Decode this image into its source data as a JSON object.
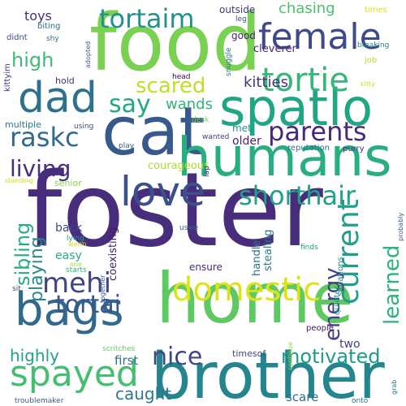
{
  "word_cloud": {
    "words": [
      {
        "text": "foster",
        "color": "#472d7b"
      },
      {
        "text": "home",
        "color": "#5ec962"
      },
      {
        "text": "food",
        "color": "#7ad151"
      },
      {
        "text": "cat",
        "color": "#38598c"
      },
      {
        "text": "brother",
        "color": "#25858e"
      },
      {
        "text": "humans",
        "color": "#29af7f"
      },
      {
        "text": "spatlo",
        "color": "#21a685"
      },
      {
        "text": "bags",
        "color": "#31688e"
      },
      {
        "text": "dad",
        "color": "#2c728e"
      },
      {
        "text": "love",
        "color": "#3b518b"
      },
      {
        "text": "female",
        "color": "#3e4a89"
      },
      {
        "text": "domestic",
        "color": "#dde318"
      },
      {
        "text": "tortie",
        "color": "#35b779"
      },
      {
        "text": "shorthair",
        "color": "#1fa287"
      },
      {
        "text": "spayed",
        "color": "#44bf70"
      },
      {
        "text": "parents",
        "color": "#482878"
      },
      {
        "text": "mehi",
        "color": "#404588"
      },
      {
        "text": "tortaim",
        "color": "#21918c"
      },
      {
        "text": "current",
        "color": "#1f9e89"
      },
      {
        "text": "tortai",
        "color": "#3a548c"
      },
      {
        "text": "raskc",
        "color": "#306a8e"
      },
      {
        "text": "say",
        "color": "#22a884"
      },
      {
        "text": "energy",
        "color": "#433e85"
      },
      {
        "text": "learned",
        "color": "#2db27d"
      },
      {
        "text": "living",
        "color": "#46307e"
      },
      {
        "text": "nice",
        "color": "#414487"
      },
      {
        "text": "scared",
        "color": "#bddf26"
      },
      {
        "text": "sibling",
        "color": "#26ad81"
      },
      {
        "text": "high",
        "color": "#3fbc73"
      },
      {
        "text": "playing",
        "color": "#24878e"
      },
      {
        "text": "motivated",
        "color": "#1e9c89"
      },
      {
        "text": "highly",
        "color": "#20a386"
      },
      {
        "text": "caught",
        "color": "#2a778e"
      },
      {
        "text": "chasing",
        "color": "#4ac16d"
      },
      {
        "text": "kitties",
        "color": "#46327e"
      },
      {
        "text": "wands",
        "color": "#31b57b"
      },
      {
        "text": "toys",
        "color": "#472f7d"
      },
      {
        "text": "first",
        "color": "#2d708e"
      },
      {
        "text": "scare",
        "color": "#2e6f8e"
      },
      {
        "text": "back",
        "color": "#3e4c8a"
      },
      {
        "text": "older",
        "color": "#482173"
      },
      {
        "text": "easy",
        "color": "#27ad81"
      },
      {
        "text": "two",
        "color": "#433d84"
      },
      {
        "text": "courageous",
        "color": "#addc30"
      },
      {
        "text": "coexisting",
        "color": "#481b6d"
      },
      {
        "text": "handle",
        "color": "#2c738e"
      },
      {
        "text": "stealing",
        "color": "#2a788e"
      },
      {
        "text": "cleverer",
        "color": "#482677"
      },
      {
        "text": "outside",
        "color": "#453781"
      },
      {
        "text": "good",
        "color": "#482576"
      },
      {
        "text": "hold",
        "color": "#463480"
      },
      {
        "text": "met",
        "color": "#20928c"
      },
      {
        "text": "ensure",
        "color": "#472a7a"
      },
      {
        "text": "senior",
        "color": "#8bd646"
      },
      {
        "text": "multiple",
        "color": "#2a768e"
      },
      {
        "text": "timesof",
        "color": "#3f4889"
      },
      {
        "text": "didnt",
        "color": "#3d4d8a"
      },
      {
        "text": "biting",
        "color": "#2f6b8e"
      },
      {
        "text": "kittyim",
        "color": "#46337f"
      },
      {
        "text": "people",
        "color": "#471164"
      },
      {
        "text": "reputation",
        "color": "#2f6c8e"
      },
      {
        "text": "purry",
        "color": "#472e7c"
      },
      {
        "text": "quieter",
        "color": "#1f988b"
      },
      {
        "text": "situations",
        "color": "#24868e"
      },
      {
        "text": "job",
        "color": "#b5de2b"
      },
      {
        "text": "breaking",
        "color": "#26828e"
      },
      {
        "text": "times",
        "color": "#d8e219"
      },
      {
        "text": "leg",
        "color": "#3e4a89"
      },
      {
        "text": "kitty",
        "color": "#c2df23"
      },
      {
        "text": "shy",
        "color": "#2e6e8e"
      },
      {
        "text": "adopted",
        "color": "#355f8d"
      },
      {
        "text": "snuggle",
        "color": "#2b748e"
      },
      {
        "text": "head",
        "color": "#440154"
      },
      {
        "text": "desk",
        "color": "#6ece58"
      },
      {
        "text": "wanted",
        "color": "#424086"
      },
      {
        "text": "play",
        "color": "#365d8d"
      },
      {
        "text": "using",
        "color": "#3c4f8a"
      },
      {
        "text": "lap",
        "color": "#453882"
      },
      {
        "text": "uswe",
        "color": "#34618d"
      },
      {
        "text": "finds",
        "color": "#1f9f88"
      },
      {
        "text": "probably",
        "color": "#3b528b"
      },
      {
        "text": "standing",
        "color": "#d0e11c"
      },
      {
        "text": "warm",
        "color": "#d2e21b"
      },
      {
        "text": "lying",
        "color": "#1f9f88"
      },
      {
        "text": "one",
        "color": "#9bd93c"
      },
      {
        "text": "starts",
        "color": "#32b67a"
      },
      {
        "text": "sit",
        "color": "#414487"
      },
      {
        "text": "together",
        "color": "#3b528b"
      },
      {
        "text": "scritches",
        "color": "#65cb5e"
      },
      {
        "text": "continue",
        "color": "#8fd744"
      },
      {
        "text": "grab",
        "color": "#2d718e"
      },
      {
        "text": "troublemaker",
        "color": "#375b8d"
      },
      {
        "text": "onto",
        "color": "#2c728e"
      }
    ]
  }
}
